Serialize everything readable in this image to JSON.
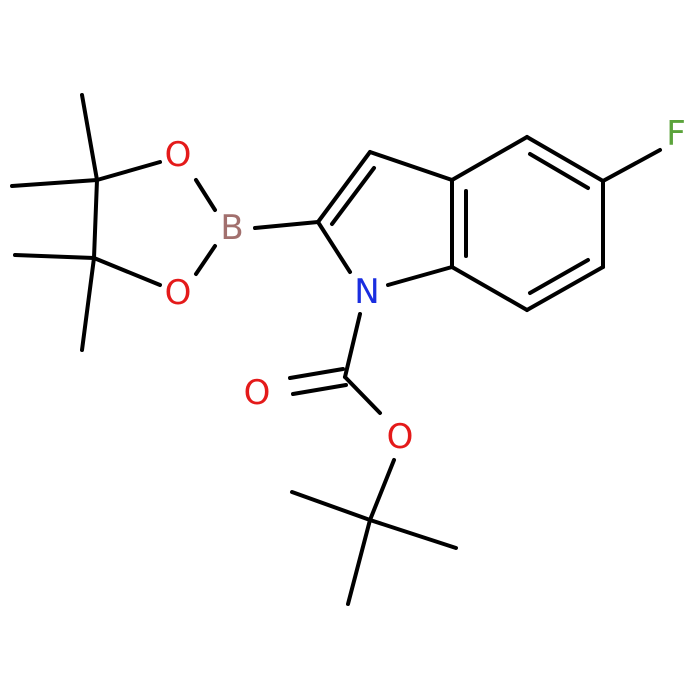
{
  "atoms": [
    {
      "label": "F"
    },
    {
      "label": "O"
    },
    {
      "label": "B"
    },
    {
      "label": "O"
    },
    {
      "label": "N"
    },
    {
      "label": "O"
    },
    {
      "label": "O"
    }
  ]
}
